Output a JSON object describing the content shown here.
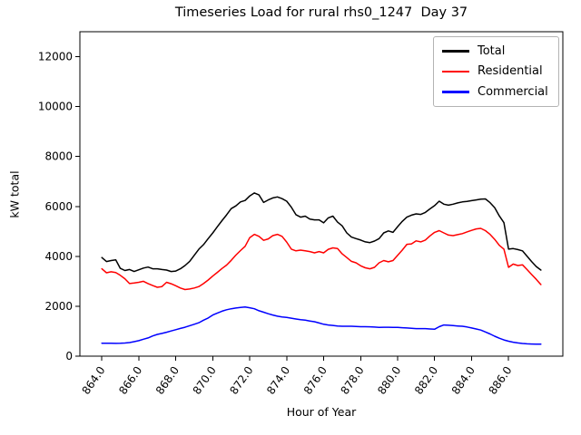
{
  "chart_data": {
    "type": "line",
    "title": "Timeseries Load for rural rhs0_1247  Day 37",
    "xlabel": "Hour of Year",
    "ylabel": "kW total",
    "grid": false,
    "legend_position": "upper right",
    "legend_border_color": "#b3b3b3",
    "axes_color": "#000000",
    "xlim": [
      862.8125,
      888.9375
    ],
    "ylim": [
      0,
      13000
    ],
    "xticks": [
      864,
      866,
      868,
      870,
      872,
      874,
      876,
      878,
      880,
      882,
      884,
      886
    ],
    "xtick_labels": [
      "864.0",
      "866.0",
      "868.0",
      "870.0",
      "872.0",
      "874.0",
      "876.0",
      "878.0",
      "880.0",
      "882.0",
      "884.0",
      "886.0"
    ],
    "yticks": [
      0,
      2000,
      4000,
      6000,
      8000,
      10000,
      12000
    ],
    "ytick_labels": [
      "0",
      "2000",
      "4000",
      "6000",
      "8000",
      "10000",
      "12000"
    ],
    "x": [
      864,
      864.25,
      864.5,
      864.75,
      865,
      865.25,
      865.5,
      865.75,
      866,
      866.25,
      866.5,
      866.75,
      867,
      867.25,
      867.5,
      867.75,
      868,
      868.25,
      868.5,
      868.75,
      869,
      869.25,
      869.5,
      869.75,
      870,
      870.25,
      870.5,
      870.75,
      871,
      871.25,
      871.5,
      871.75,
      872,
      872.25,
      872.5,
      872.75,
      873,
      873.25,
      873.5,
      873.75,
      874,
      874.25,
      874.5,
      874.75,
      875,
      875.25,
      875.5,
      875.75,
      876,
      876.25,
      876.5,
      876.75,
      877,
      877.25,
      877.5,
      877.75,
      878,
      878.25,
      878.5,
      878.75,
      879,
      879.25,
      879.5,
      879.75,
      880,
      880.25,
      880.5,
      880.75,
      881,
      881.25,
      881.5,
      881.75,
      882,
      882.25,
      882.5,
      882.75,
      883,
      883.25,
      883.5,
      883.75,
      884,
      884.25,
      884.5,
      884.75,
      885,
      885.25,
      885.5,
      885.75,
      886,
      886.25,
      886.5,
      886.75,
      887,
      887.25,
      887.5,
      887.75
    ],
    "series": [
      {
        "name": "Total",
        "color": "#000000",
        "values": [
          3950,
          3790,
          3830,
          3860,
          3520,
          3430,
          3470,
          3390,
          3460,
          3530,
          3570,
          3500,
          3500,
          3470,
          3450,
          3390,
          3410,
          3500,
          3630,
          3800,
          4040,
          4290,
          4470,
          4710,
          4940,
          5190,
          5430,
          5660,
          5910,
          6020,
          6180,
          6240,
          6420,
          6540,
          6460,
          6160,
          6260,
          6340,
          6380,
          6310,
          6210,
          5970,
          5670,
          5570,
          5610,
          5490,
          5460,
          5460,
          5340,
          5540,
          5610,
          5370,
          5220,
          4940,
          4770,
          4710,
          4650,
          4580,
          4550,
          4610,
          4710,
          4940,
          5020,
          4960,
          5190,
          5400,
          5570,
          5650,
          5700,
          5680,
          5760,
          5900,
          6030,
          6210,
          6090,
          6050,
          6090,
          6140,
          6180,
          6200,
          6230,
          6260,
          6290,
          6300,
          6150,
          5950,
          5620,
          5350,
          4290,
          4310,
          4270,
          4220,
          4010,
          3790,
          3590,
          3450
        ]
      },
      {
        "name": "Residential",
        "color": "#ff0000",
        "values": [
          3500,
          3340,
          3380,
          3350,
          3240,
          3100,
          2910,
          2930,
          2960,
          3000,
          2910,
          2830,
          2760,
          2790,
          2960,
          2900,
          2820,
          2730,
          2670,
          2690,
          2730,
          2790,
          2910,
          3050,
          3210,
          3360,
          3510,
          3650,
          3840,
          4050,
          4230,
          4400,
          4750,
          4880,
          4800,
          4640,
          4700,
          4830,
          4880,
          4800,
          4570,
          4290,
          4220,
          4250,
          4220,
          4190,
          4140,
          4190,
          4140,
          4280,
          4340,
          4310,
          4100,
          3950,
          3800,
          3740,
          3620,
          3540,
          3500,
          3560,
          3740,
          3830,
          3780,
          3830,
          4040,
          4250,
          4480,
          4500,
          4620,
          4580,
          4650,
          4820,
          4960,
          5030,
          4940,
          4850,
          4830,
          4870,
          4910,
          4980,
          5040,
          5100,
          5120,
          5030,
          4880,
          4680,
          4440,
          4290,
          3560,
          3690,
          3630,
          3660,
          3470,
          3270,
          3080,
          2870
        ]
      },
      {
        "name": "Commercial",
        "color": "#0000ff",
        "values": [
          520,
          515,
          515,
          512,
          515,
          525,
          545,
          580,
          620,
          680,
          730,
          810,
          870,
          910,
          960,
          1010,
          1060,
          1110,
          1160,
          1220,
          1280,
          1340,
          1440,
          1530,
          1650,
          1730,
          1800,
          1860,
          1900,
          1930,
          1950,
          1970,
          1940,
          1900,
          1820,
          1760,
          1700,
          1650,
          1600,
          1570,
          1550,
          1520,
          1490,
          1460,
          1440,
          1410,
          1380,
          1330,
          1280,
          1250,
          1230,
          1210,
          1200,
          1200,
          1200,
          1190,
          1180,
          1180,
          1175,
          1165,
          1155,
          1160,
          1160,
          1155,
          1150,
          1140,
          1130,
          1115,
          1105,
          1105,
          1105,
          1090,
          1080,
          1180,
          1250,
          1240,
          1225,
          1210,
          1200,
          1170,
          1130,
          1090,
          1045,
          970,
          890,
          800,
          720,
          650,
          600,
          560,
          530,
          510,
          495,
          485,
          480,
          478
        ]
      }
    ]
  }
}
